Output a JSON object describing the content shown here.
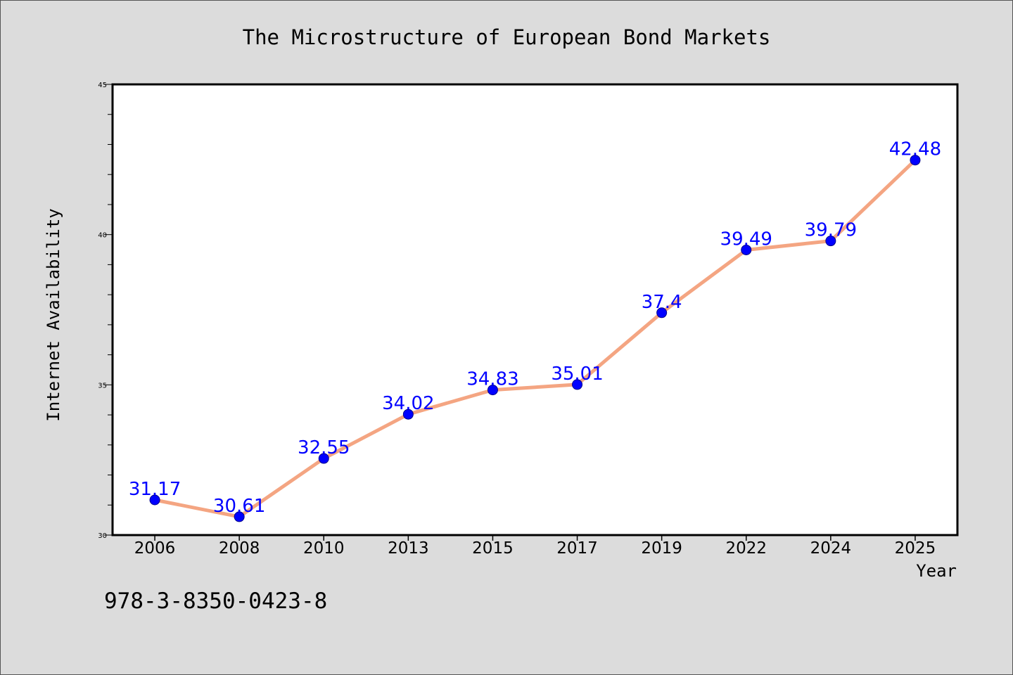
{
  "chart_data": {
    "type": "line",
    "title": "The Microstructure of European Bond Markets",
    "xlabel": "Year",
    "ylabel": "Internet Availability",
    "categories": [
      "2006",
      "2008",
      "2010",
      "2013",
      "2015",
      "2017",
      "2019",
      "2022",
      "2024",
      "2025"
    ],
    "series": [
      {
        "values": [
          31.17,
          30.61,
          32.55,
          34.02,
          34.83,
          35.01,
          37.4,
          39.49,
          39.79,
          42.48
        ],
        "data_labels": [
          "31.17",
          "30.61",
          "32.55",
          "34.02",
          "34.83",
          "35.01",
          "37.4",
          "39.49",
          "39.79",
          "42.48"
        ]
      }
    ],
    "ylim": [
      30,
      45
    ],
    "yticks_major": [
      "30",
      "35",
      "40",
      "45"
    ],
    "yticks_major_values": [
      30,
      35,
      40,
      45
    ],
    "yticks_minor_step": 1,
    "grid": false,
    "legend": "none",
    "colors": {
      "line": "#f4a582",
      "marker": "#0000ff",
      "marker_edge": "#00008b",
      "data_label": "#0000ff",
      "axis": "#000000",
      "plot_background": "#ffffff",
      "page_background": "#dcdcdc"
    }
  },
  "annotation": {
    "isbn": "978-3-8350-0423-8"
  }
}
